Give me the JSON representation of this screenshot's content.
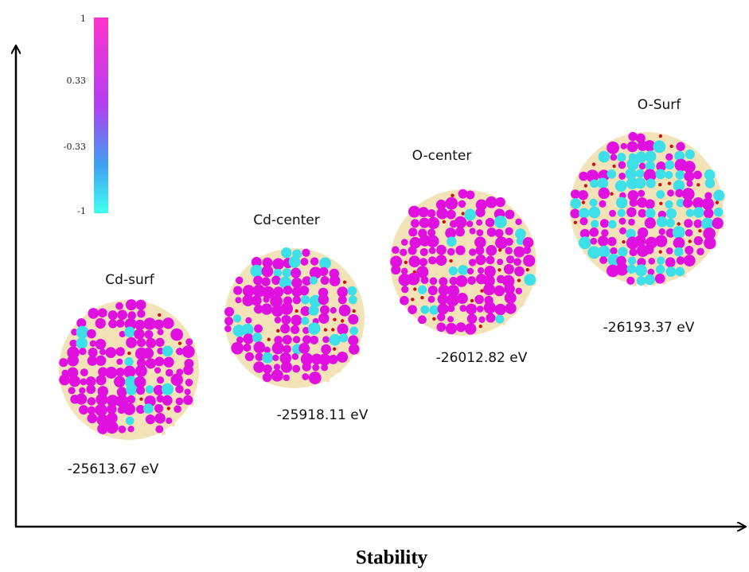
{
  "colorbar": {
    "ticks": [
      "1",
      "0.33",
      "-0.33",
      "-1"
    ]
  },
  "clusters": [
    {
      "label": "Cd-surf",
      "energy": "-25613.67 eV"
    },
    {
      "label": "Cd-center",
      "energy": "-25918.11 eV"
    },
    {
      "label": "O-center",
      "energy": "-26012.82 eV"
    },
    {
      "label": "O-Surf",
      "energy": "-26193.37 eV"
    }
  ],
  "axis_label": "Stability"
}
